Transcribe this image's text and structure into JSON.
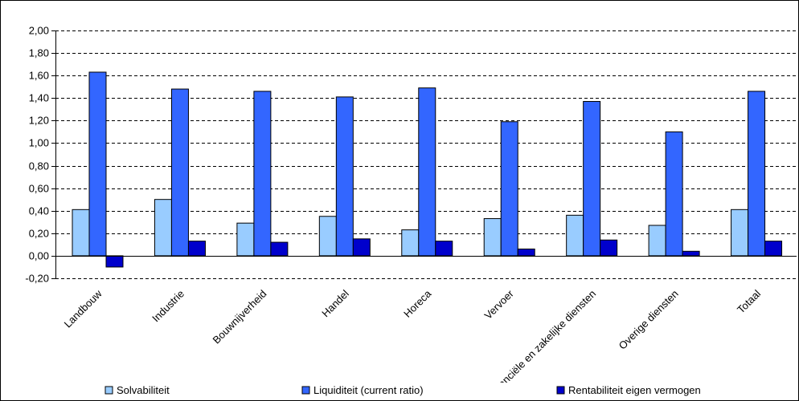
{
  "chart_data": {
    "type": "bar",
    "title": "",
    "xlabel": "",
    "ylabel": "",
    "ylim": [
      -0.2,
      2.0
    ],
    "ytick_step": 0.2,
    "yticks": [
      "-0,20",
      "0,00",
      "0,20",
      "0,40",
      "0,60",
      "0,80",
      "1,00",
      "1,20",
      "1,40",
      "1,60",
      "1,80",
      "2,00"
    ],
    "categories": [
      "Landbouw",
      "Industrie",
      "Bouwnijverheid",
      "Handel",
      "Horeca",
      "Vervoer",
      "Financiële en zakelijke diensten",
      "Overige diensten",
      "Totaal"
    ],
    "series": [
      {
        "name": "Solvabiliteit",
        "color": "#99ccff",
        "values": [
          0.41,
          0.5,
          0.29,
          0.35,
          0.23,
          0.33,
          0.36,
          0.27,
          0.41
        ]
      },
      {
        "name": "Liquiditeit (current ratio)",
        "color": "#3366ff",
        "values": [
          1.63,
          1.48,
          1.46,
          1.41,
          1.49,
          1.19,
          1.37,
          1.1,
          1.46
        ]
      },
      {
        "name": "Rentabiliteit eigen vermogen",
        "color": "#0000cc",
        "values": [
          -0.1,
          0.13,
          0.12,
          0.15,
          0.13,
          0.06,
          0.14,
          0.04,
          0.13
        ]
      }
    ],
    "grid": "horizontal-dashed",
    "legend_position": "bottom"
  }
}
